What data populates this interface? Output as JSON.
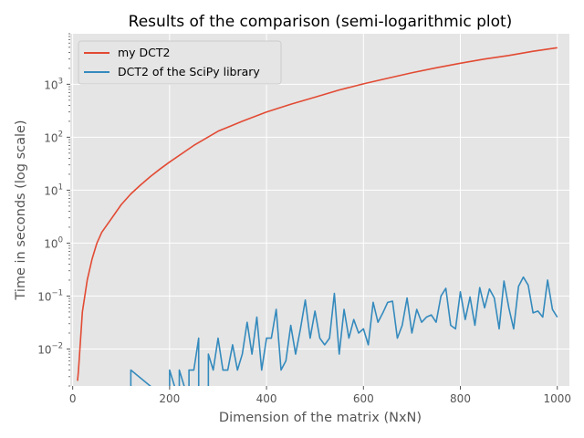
{
  "chart_data": {
    "type": "line",
    "title": "Results of the comparison (semi-logarithmic plot)",
    "xlabel": "Dimension of the matrix (NxN)",
    "ylabel": "Time in seconds (log scale)",
    "xlim": [
      -5,
      1025
    ],
    "ylim": [
      0.002,
      9000
    ],
    "yscale": "log",
    "grid": true,
    "legend_position": "top-left",
    "x_ticks": [
      0,
      200,
      400,
      600,
      800,
      1000
    ],
    "x_tick_labels": [
      "0",
      "200",
      "400",
      "600",
      "800",
      "1000"
    ],
    "y_ticks": [
      0.01,
      0.1,
      1,
      10,
      100,
      1000
    ],
    "y_tick_labels_base": [
      "10",
      "10",
      "10",
      "10",
      "10",
      "10"
    ],
    "y_tick_labels_exp": [
      "−2",
      "−1",
      "0",
      "1",
      "2",
      "3"
    ],
    "colors": {
      "background": "#e5e5e5",
      "grid": "#ffffff"
    },
    "series": [
      {
        "name": "my DCT2",
        "color": "#e24a33",
        "x": [
          10,
          12,
          20,
          30,
          40,
          50,
          60,
          80,
          100,
          120,
          140,
          160,
          180,
          200,
          250,
          300,
          350,
          400,
          450,
          500,
          550,
          600,
          650,
          700,
          750,
          800,
          850,
          900,
          950,
          1000
        ],
        "y": [
          0.0025,
          0.004,
          0.05,
          0.2,
          0.5,
          1.0,
          1.6,
          2.9,
          5.3,
          8.5,
          12.5,
          18,
          25,
          34,
          70,
          130,
          200,
          300,
          420,
          570,
          780,
          1020,
          1300,
          1650,
          2050,
          2500,
          3000,
          3500,
          4200,
          4900
        ]
      },
      {
        "name": "DCT2 of the SciPy library",
        "color": "#348abd",
        "x": [
          120,
          120,
          200,
          200,
          220,
          220,
          240,
          240,
          250,
          260,
          260,
          270,
          280,
          280,
          290,
          300,
          310,
          320,
          330,
          340,
          350,
          360,
          370,
          380,
          390,
          400,
          410,
          420,
          430,
          440,
          450,
          460,
          470,
          480,
          490,
          500,
          510,
          520,
          530,
          540,
          550,
          560,
          570,
          580,
          590,
          600,
          610,
          620,
          630,
          640,
          650,
          660,
          670,
          680,
          690,
          700,
          710,
          720,
          730,
          740,
          750,
          760,
          770,
          780,
          790,
          800,
          810,
          820,
          830,
          840,
          850,
          860,
          870,
          880,
          890,
          900,
          910,
          920,
          930,
          940,
          950,
          960,
          970,
          980,
          990,
          1000
        ],
        "y": [
          0.001,
          0.004,
          0.001,
          0.004,
          0.001,
          0.004,
          0.001,
          0.004,
          0.004,
          0.016,
          0.001,
          0.001,
          0.001,
          0.008,
          0.004,
          0.016,
          0.004,
          0.004,
          0.012,
          0.004,
          0.008,
          0.032,
          0.008,
          0.04,
          0.004,
          0.016,
          0.016,
          0.056,
          0.004,
          0.006,
          0.028,
          0.008,
          0.024,
          0.084,
          0.016,
          0.052,
          0.016,
          0.012,
          0.016,
          0.112,
          0.008,
          0.056,
          0.016,
          0.036,
          0.02,
          0.024,
          0.012,
          0.076,
          0.032,
          0.048,
          0.076,
          0.08,
          0.016,
          0.028,
          0.092,
          0.02,
          0.056,
          0.032,
          0.04,
          0.044,
          0.032,
          0.1,
          0.14,
          0.028,
          0.024,
          0.12,
          0.036,
          0.096,
          0.028,
          0.144,
          0.06,
          0.136,
          0.092,
          0.024,
          0.192,
          0.06,
          0.024,
          0.152,
          0.228,
          0.16,
          0.048,
          0.052,
          0.04,
          0.2,
          0.056,
          0.04
        ]
      }
    ]
  }
}
